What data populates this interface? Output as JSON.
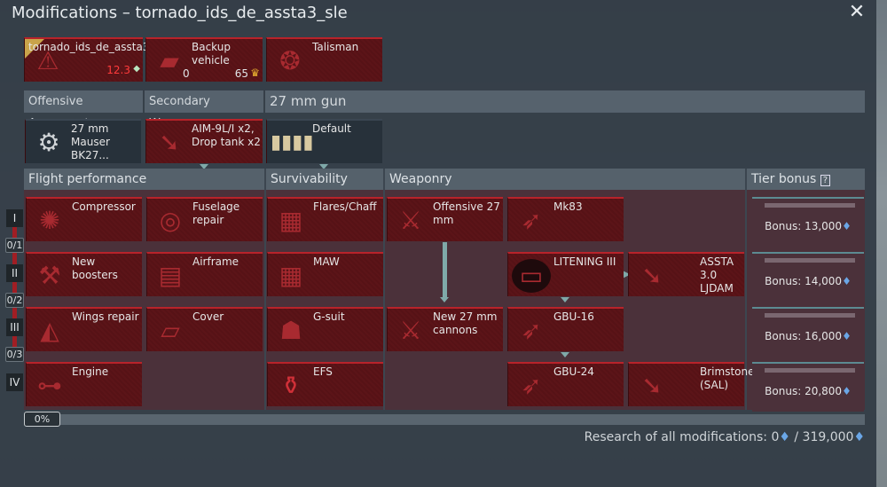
{
  "window": {
    "title": "Modifications – tornado_ids_de_assta3_sle"
  },
  "top_cards": [
    {
      "label": "tornado_ids_de_assta3_",
      "value": "12.3",
      "icon": "repair-warning-icon"
    },
    {
      "label": "Backup vehicle",
      "count": "0",
      "cost": "65",
      "icon": "backup-cards-icon"
    },
    {
      "label": "Talisman",
      "icon": "talisman-wreath-icon"
    }
  ],
  "armament_headers": [
    "Offensive Armament",
    "Secondary Weapons",
    "27 mm gun"
  ],
  "armament_cards": [
    {
      "label": "27 mm Mauser BK27..."
    },
    {
      "label": "AIM-9L/I x2, Drop tank x2"
    },
    {
      "label": "Default"
    }
  ],
  "sections": [
    "Flight performance",
    "Survivability",
    "Weaponry",
    "Tier bonus"
  ],
  "tiers": [
    "I",
    "II",
    "III",
    "IV"
  ],
  "tier_counts": [
    "0/1",
    "0/2",
    "0/3"
  ],
  "mods": {
    "flight": [
      [
        "Compressor",
        "Fuselage repair"
      ],
      [
        "New boosters",
        "Airframe"
      ],
      [
        "Wings repair",
        "Cover"
      ],
      [
        "Engine",
        ""
      ]
    ],
    "survivability": [
      "Flares/Chaff",
      "MAW",
      "G-suit",
      "EFS"
    ],
    "weaponry": {
      "offensive_27": "Offensive 27 mm",
      "new_27": "New 27 mm cannons",
      "mk83": "Mk83",
      "litening": "LITENING III",
      "assta": "ASSTA 3.0 LJDAM",
      "gbu16": "GBU-16",
      "gbu24": "GBU-24",
      "brimstone": "Brimstone (SAL)"
    }
  },
  "tier_bonus": [
    "Bonus: 13,000",
    "Bonus: 14,000",
    "Bonus: 16,000",
    "Bonus: 20,800"
  ],
  "progress": {
    "label": "0%",
    "value": 0
  },
  "research": {
    "label": "Research of all modifications: 0",
    "total": "/ 319,000"
  },
  "colors": {
    "card_red": "#5c1418",
    "accent_red": "#b8232a",
    "rp_blue": "#6aa6e6",
    "value_red": "#ff3b3b"
  }
}
